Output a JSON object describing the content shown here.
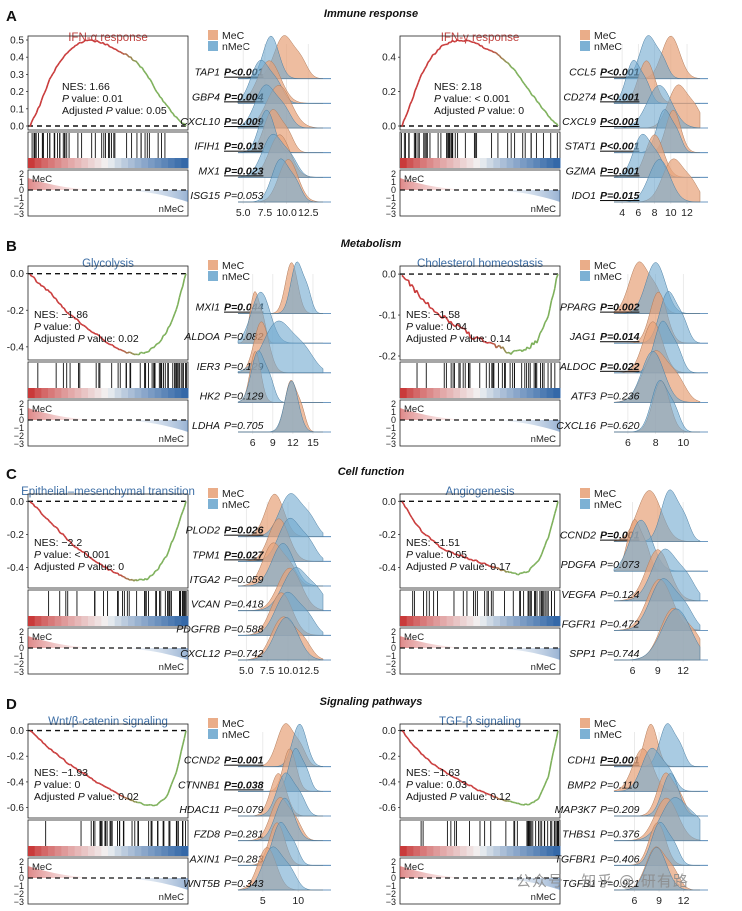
{
  "colors": {
    "mec": "#E8A47C",
    "nmec": "#6FA8CF",
    "overlap": "#8A8C8E",
    "red": "#C93A3A",
    "blue": "#3468A8",
    "title_red": "#C0413E",
    "title_blue": "#3D6EA5",
    "line_green": "#7DB05A",
    "baseline": "#3F78AE"
  },
  "legend": {
    "mec": "MeC",
    "nmec": "nMeC"
  },
  "axis_labels": {
    "mec": "MeC",
    "nmec": "nMeC"
  },
  "watermark": "公众号 · 知乎 @ 研有路",
  "sections": [
    {
      "letter": "A",
      "title": "Immune response"
    },
    {
      "letter": "B",
      "title": "Metabolism"
    },
    {
      "letter": "C",
      "title": "Cell function"
    },
    {
      "letter": "D",
      "title": "Signaling pathways"
    }
  ],
  "chart_data": [
    {
      "type": "gsea",
      "panel": "A-left",
      "title": "IFN-α response",
      "title_color": "red",
      "stats": {
        "nes": "NES: 1.66",
        "p": "value: 0.01",
        "adj_p": "value: 0.05"
      },
      "ylim": [
        0,
        0.5
      ],
      "yticks": [
        "0.5",
        "0.4",
        "0.3",
        "0.2",
        "0.1",
        "0.0"
      ],
      "es_curve": [
        0,
        0.12,
        0.27,
        0.37,
        0.44,
        0.48,
        0.5,
        0.49,
        0.47,
        0.44,
        0.41,
        0.37,
        0.3,
        0.2,
        0.12,
        0.05,
        0
      ],
      "metric_ticks": [
        "2",
        "1",
        "0",
        "−1",
        "−2",
        "−3"
      ],
      "ridge": {
        "xticks": [
          5.0,
          7.5,
          10.0,
          12.5
        ],
        "xlim": [
          4.4,
          14.2
        ],
        "genes": [
          {
            "gene": "TAP1",
            "p": "P<0.001",
            "bold": true,
            "mec": [
              9.7,
              1.1
            ],
            "nmec": [
              8.2,
              0.9
            ]
          },
          {
            "gene": "GBP4",
            "p": "P=0.004",
            "bold": true,
            "mec": [
              8.0,
              1.3
            ],
            "nmec": [
              7.0,
              1.1
            ]
          },
          {
            "gene": "CXCL10",
            "p": "P=0.009",
            "bold": true,
            "mec": [
              9.1,
              1.4
            ],
            "nmec": [
              7.6,
              1.2
            ]
          },
          {
            "gene": "IFIH1",
            "p": "P=0.013",
            "bold": true,
            "mec": [
              8.4,
              1.0
            ],
            "nmec": [
              7.7,
              0.9
            ]
          },
          {
            "gene": "MX1",
            "p": "P=0.023",
            "bold": true,
            "mec": [
              9.2,
              1.2
            ],
            "nmec": [
              8.4,
              1.2
            ]
          },
          {
            "gene": "ISG15",
            "p": "P=0.053",
            "bold": false,
            "mec": [
              10.2,
              1.1
            ],
            "nmec": [
              9.3,
              1.0
            ]
          }
        ]
      }
    },
    {
      "type": "gsea",
      "panel": "A-right",
      "title": "IFN-γ response",
      "title_color": "red",
      "stats": {
        "nes": "NES: 2.18",
        "p": "value: < 0.001",
        "adj_p": "value: 0"
      },
      "ylim": [
        0,
        0.5
      ],
      "yticks": [
        "0.4",
        "0.2",
        "0.0"
      ],
      "es_curve": [
        0,
        0.15,
        0.3,
        0.4,
        0.46,
        0.49,
        0.5,
        0.49,
        0.47,
        0.44,
        0.41,
        0.36,
        0.29,
        0.21,
        0.13,
        0.06,
        0
      ],
      "metric_ticks": [
        "2",
        "1",
        "0",
        "−1",
        "−2",
        "−3"
      ],
      "ridge": {
        "xticks": [
          4,
          6,
          8,
          10,
          12
        ],
        "xlim": [
          3.0,
          13.6
        ],
        "genes": [
          {
            "gene": "CCL5",
            "p": "P<0.001",
            "bold": true,
            "mec": [
              10.0,
              1.1
            ],
            "nmec": [
              7.2,
              1.0
            ]
          },
          {
            "gene": "CD274",
            "p": "P<0.001",
            "bold": true,
            "mec": [
              7.0,
              1.0
            ],
            "nmec": [
              5.4,
              0.9
            ]
          },
          {
            "gene": "CXCL9",
            "p": "P<0.001",
            "bold": true,
            "mec": [
              10.9,
              1.2
            ],
            "nmec": [
              8.6,
              1.5
            ]
          },
          {
            "gene": "STAT1",
            "p": "P<0.001",
            "bold": true,
            "mec": [
              10.3,
              0.9
            ],
            "nmec": [
              9.2,
              0.9
            ]
          },
          {
            "gene": "GZMA",
            "p": "P=0.001",
            "bold": true,
            "mec": [
              8.0,
              1.1
            ],
            "nmec": [
              6.5,
              1.1
            ]
          },
          {
            "gene": "IDO1",
            "p": "P=0.015",
            "bold": true,
            "mec": [
              10.3,
              1.3
            ],
            "nmec": [
              8.6,
              1.3
            ]
          }
        ]
      }
    },
    {
      "type": "gsea",
      "panel": "B-left",
      "title": "Glycolysis",
      "title_color": "blue",
      "stats": {
        "nes": "NES: −1.86",
        "p": "value: 0",
        "adj_p": "value: 0.02"
      },
      "ylim": [
        -0.45,
        0.02
      ],
      "yticks": [
        "0.0",
        "-0.2",
        "-0.4"
      ],
      "es_curve": [
        0,
        -0.06,
        -0.1,
        -0.16,
        -0.22,
        -0.26,
        -0.31,
        -0.34,
        -0.38,
        -0.41,
        -0.43,
        -0.44,
        -0.43,
        -0.39,
        -0.32,
        -0.2,
        0
      ],
      "metric_ticks": [
        "2",
        "1",
        "0",
        "−1",
        "−2",
        "−3"
      ],
      "ridge": {
        "xticks": [
          6,
          9,
          12,
          15
        ],
        "xlim": [
          3.8,
          16.5
        ],
        "genes": [
          {
            "gene": "MXI1",
            "p": "P=0.044",
            "bold": true,
            "mec": [
              11.8,
              0.9
            ],
            "nmec": [
              12.6,
              0.9
            ]
          },
          {
            "gene": "ALDOA",
            "p": "P=0.082",
            "bold": false,
            "mec": [
              6.3,
              0.7
            ],
            "nmec": [
              7.2,
              1.4
            ]
          },
          {
            "gene": "IER3",
            "p": "P=0.129",
            "bold": false,
            "mec": [
              7.3,
              1.1
            ],
            "nmec": [
              9.8,
              2.2
            ]
          },
          {
            "gene": "HK2",
            "p": "P=0.129",
            "bold": false,
            "mec": [
              6.4,
              0.8
            ],
            "nmec": [
              6.8,
              1.0
            ]
          },
          {
            "gene": "LDHA",
            "p": "P=0.705",
            "bold": false,
            "mec": [
              11.7,
              0.9
            ],
            "nmec": [
              11.8,
              1.0
            ]
          }
        ]
      }
    },
    {
      "type": "gsea",
      "panel": "B-right",
      "title": "Cholesterol homeostasis",
      "title_color": "blue",
      "stats": {
        "nes": "NES: −1.58",
        "p": "value: 0.04",
        "adj_p": "value: 0.14"
      },
      "ylim": [
        -0.2,
        0.01
      ],
      "yticks": [
        "0.0",
        "-0.1",
        "-0.2"
      ],
      "es_curve": [
        0,
        -0.03,
        -0.06,
        -0.08,
        -0.1,
        -0.12,
        -0.13,
        -0.15,
        -0.16,
        -0.17,
        -0.18,
        -0.19,
        -0.19,
        -0.18,
        -0.16,
        -0.1,
        0
      ],
      "metric_ticks": [
        "2",
        "1",
        "0",
        "−1",
        "−2",
        "−3"
      ],
      "ridge": {
        "xticks": [
          6,
          8,
          10
        ],
        "xlim": [
          5.0,
          11.2
        ],
        "genes": [
          {
            "gene": "PPARG",
            "p": "P=0.002",
            "bold": true,
            "mec": [
              6.8,
              0.7
            ],
            "nmec": [
              8.0,
              0.7
            ]
          },
          {
            "gene": "JAG1",
            "p": "P=0.014",
            "bold": true,
            "mec": [
              8.2,
              0.6
            ],
            "nmec": [
              8.9,
              0.6
            ]
          },
          {
            "gene": "ALDOC",
            "p": "P=0.022",
            "bold": true,
            "mec": [
              7.8,
              0.7
            ],
            "nmec": [
              8.5,
              0.6
            ]
          },
          {
            "gene": "ATF3",
            "p": "P=0.236",
            "bold": false,
            "mec": [
              8.0,
              0.9
            ],
            "nmec": [
              7.8,
              0.8
            ]
          },
          {
            "gene": "CXCL16",
            "p": "P=0.620",
            "bold": false,
            "mec": [
              8.4,
              0.6
            ],
            "nmec": [
              8.3,
              0.6
            ]
          }
        ]
      }
    },
    {
      "type": "gsea",
      "panel": "C-left",
      "title": "Epithelial–mesenchymal transition",
      "title_color": "blue",
      "stats": {
        "nes": "NES: −2.2",
        "p": "value: < 0.001",
        "adj_p": "value: 0"
      },
      "ylim": [
        -0.5,
        0.02
      ],
      "yticks": [
        "0.0",
        "-0.2",
        "-0.4"
      ],
      "es_curve": [
        0,
        -0.06,
        -0.12,
        -0.18,
        -0.24,
        -0.29,
        -0.33,
        -0.37,
        -0.41,
        -0.44,
        -0.47,
        -0.48,
        -0.47,
        -0.42,
        -0.33,
        -0.18,
        0
      ],
      "metric_ticks": [
        "2",
        "1",
        "0",
        "−1",
        "−2",
        "−3"
      ],
      "ridge": {
        "xticks": [
          5.0,
          7.5,
          10.0,
          12.5
        ],
        "xlim": [
          4.0,
          14.2
        ],
        "genes": [
          {
            "gene": "PLOD2",
            "p": "P=0.026",
            "bold": true,
            "mec": [
              8.4,
              1.1
            ],
            "nmec": [
              10.3,
              1.3
            ]
          },
          {
            "gene": "TPM1",
            "p": "P=0.027",
            "bold": true,
            "mec": [
              8.9,
              1.2
            ],
            "nmec": [
              10.2,
              1.3
            ]
          },
          {
            "gene": "ITGA2",
            "p": "P=0.059",
            "bold": false,
            "mec": [
              8.2,
              1.2
            ],
            "nmec": [
              9.4,
              1.3
            ]
          },
          {
            "gene": "VCAN",
            "p": "P=0.418",
            "bold": false,
            "mec": [
              10.2,
              1.4
            ],
            "nmec": [
              10.9,
              1.5
            ]
          },
          {
            "gene": "PDGFRB",
            "p": "P=0.588",
            "bold": false,
            "mec": [
              9.2,
              1.3
            ],
            "nmec": [
              9.9,
              1.4
            ]
          },
          {
            "gene": "CXCL12",
            "p": "P=0.742",
            "bold": false,
            "mec": [
              9.4,
              1.4
            ],
            "nmec": [
              9.8,
              1.4
            ]
          }
        ]
      }
    },
    {
      "type": "gsea",
      "panel": "C-right",
      "title": "Angiogenesis",
      "title_color": "blue",
      "stats": {
        "nes": "NES: −1.51",
        "p": "value: 0.05",
        "adj_p": "value: 0.17"
      },
      "ylim": [
        -0.5,
        0.02
      ],
      "yticks": [
        "0.0",
        "-0.2",
        "-0.4"
      ],
      "es_curve": [
        0,
        -0.1,
        -0.18,
        -0.23,
        -0.28,
        -0.31,
        -0.33,
        -0.35,
        -0.37,
        -0.39,
        -0.41,
        -0.43,
        -0.44,
        -0.42,
        -0.36,
        -0.22,
        0
      ],
      "metric_ticks": [
        "2",
        "1",
        "0",
        "−1",
        "−2",
        "−3"
      ],
      "ridge": {
        "xticks": [
          6,
          9,
          12
        ],
        "xlim": [
          3.8,
          14.0
        ],
        "genes": [
          {
            "gene": "CCND2",
            "p": "P=0.001",
            "bold": true,
            "mec": [
              8.0,
              1.4
            ],
            "nmec": [
              10.4,
              1.0
            ]
          },
          {
            "gene": "PDGFA",
            "p": "P=0.073",
            "bold": false,
            "mec": [
              6.2,
              0.8
            ],
            "nmec": [
              7.0,
              1.3
            ]
          },
          {
            "gene": "VEGFA",
            "p": "P=0.124",
            "bold": false,
            "mec": [
              9.0,
              1.4
            ],
            "nmec": [
              9.8,
              1.5
            ]
          },
          {
            "gene": "FGFR1",
            "p": "P=0.472",
            "bold": false,
            "mec": [
              9.2,
              1.5
            ],
            "nmec": [
              9.6,
              1.5
            ]
          },
          {
            "gene": "SPP1",
            "p": "P=0.744",
            "bold": false,
            "mec": [
              10.8,
              1.5
            ],
            "nmec": [
              11.2,
              1.7
            ]
          }
        ]
      }
    },
    {
      "type": "gsea",
      "panel": "D-left",
      "title": "Wnt/β-catenin signaling",
      "title_color": "blue",
      "stats": {
        "nes": "NES: −1.93",
        "p": "value: 0",
        "adj_p": "value: 0.02"
      },
      "ylim": [
        -0.65,
        0.02
      ],
      "yticks": [
        "0.0",
        "-0.2",
        "-0.4",
        "-0.6"
      ],
      "es_curve": [
        0,
        -0.07,
        -0.14,
        -0.2,
        -0.26,
        -0.31,
        -0.36,
        -0.41,
        -0.45,
        -0.49,
        -0.53,
        -0.56,
        -0.58,
        -0.58,
        -0.52,
        -0.33,
        0
      ],
      "metric_ticks": [
        "2",
        "1",
        "0",
        "−1",
        "−2",
        "−3"
      ],
      "ridge": {
        "xticks": [
          5,
          10
        ],
        "xlim": [
          1.5,
          13.5
        ],
        "genes": [
          {
            "gene": "CCND2",
            "p": "P=0.001",
            "bold": true,
            "mec": [
              8.2,
              1.2
            ],
            "nmec": [
              10.2,
              1.0
            ]
          },
          {
            "gene": "CTNNB1",
            "p": "P=0.038",
            "bold": true,
            "mec": [
              8.8,
              0.9
            ],
            "nmec": [
              9.6,
              0.9
            ]
          },
          {
            "gene": "HDAC11",
            "p": "P=0.079",
            "bold": false,
            "mec": [
              7.2,
              1.1
            ],
            "nmec": [
              8.2,
              1.2
            ]
          },
          {
            "gene": "FZD8",
            "p": "P=0.281",
            "bold": false,
            "mec": [
              7.4,
              1.3
            ],
            "nmec": [
              8.1,
              1.3
            ]
          },
          {
            "gene": "AXIN1",
            "p": "P=0.283",
            "bold": false,
            "mec": [
              7.0,
              1.1
            ],
            "nmec": [
              7.5,
              1.1
            ]
          },
          {
            "gene": "WNT5B",
            "p": "P=0.343",
            "bold": false,
            "mec": [
              5.6,
              1.3
            ],
            "nmec": [
              6.4,
              1.4
            ]
          }
        ]
      }
    },
    {
      "type": "gsea",
      "panel": "D-right",
      "title": "TGF-β signaling",
      "title_color": "blue",
      "stats": {
        "nes": "NES: −1.63",
        "p": "value: 0.03",
        "adj_p": "value: 0.12"
      },
      "ylim": [
        -0.65,
        0.02
      ],
      "yticks": [
        "0.0",
        "-0.2",
        "-0.4",
        "-0.6"
      ],
      "es_curve": [
        0,
        -0.1,
        -0.18,
        -0.25,
        -0.3,
        -0.35,
        -0.39,
        -0.43,
        -0.47,
        -0.5,
        -0.53,
        -0.55,
        -0.57,
        -0.58,
        -0.53,
        -0.36,
        0
      ],
      "metric_ticks": [
        "2",
        "1",
        "0",
        "−1",
        "−2",
        "−3"
      ],
      "ridge": {
        "xticks": [
          6,
          9,
          12
        ],
        "xlim": [
          3.5,
          14.0
        ],
        "genes": [
          {
            "gene": "CDH1",
            "p": "P=0.001",
            "bold": true,
            "mec": [
              8.0,
              0.8
            ],
            "nmec": [
              10.0,
              0.9
            ]
          },
          {
            "gene": "BMP2",
            "p": "P=0.110",
            "bold": false,
            "mec": [
              7.0,
              1.2
            ],
            "nmec": [
              8.1,
              1.2
            ]
          },
          {
            "gene": "MAP3K7",
            "p": "P=0.209",
            "bold": false,
            "mec": [
              9.8,
              1.0
            ],
            "nmec": [
              10.4,
              1.0
            ]
          },
          {
            "gene": "THBS1",
            "p": "P=0.376",
            "bold": false,
            "mec": [
              9.9,
              1.4
            ],
            "nmec": [
              10.9,
              1.6
            ]
          },
          {
            "gene": "TGFBR1",
            "p": "P=0.406",
            "bold": false,
            "mec": [
              8.8,
              1.0
            ],
            "nmec": [
              9.1,
              1.0
            ]
          },
          {
            "gene": "TGFB1",
            "p": "P=0.921",
            "bold": false,
            "mec": [
              8.6,
              1.2
            ],
            "nmec": [
              8.7,
              1.2
            ]
          }
        ]
      }
    }
  ]
}
